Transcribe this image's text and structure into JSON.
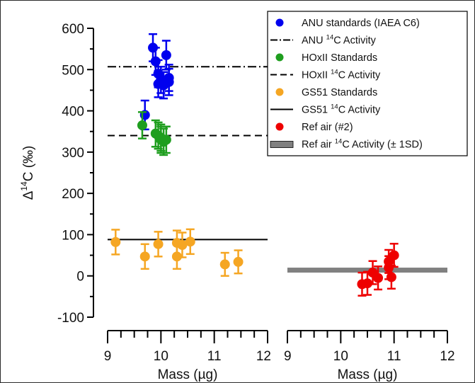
{
  "chart_data": {
    "type": "scatter",
    "panels": [
      {
        "name": "standards",
        "xlabel": "Mass (µg)",
        "xlim": [
          9,
          12
        ],
        "x_ticks": [
          "9",
          "10",
          "11",
          "12"
        ]
      },
      {
        "name": "ref-air",
        "xlabel": "Mass (µg)",
        "xlim": [
          9,
          12
        ],
        "x_ticks": [
          "9",
          "10",
          "11",
          "12"
        ]
      }
    ],
    "ylabel": "Δ14C (‰)",
    "ylabel_parts": {
      "delta": "Δ",
      "sup": "14",
      "rest": "C (‰)"
    },
    "ylim": [
      -100,
      600
    ],
    "y_ticks": [
      -100,
      0,
      100,
      200,
      300,
      400,
      500,
      600
    ],
    "legend_position": "top-right",
    "colors": {
      "anu": "#0000ee",
      "hox": "#1f9e1f",
      "gs51": "#f5a623",
      "refair": "#ee0000",
      "refair_band": "#808080",
      "line": "#000000"
    },
    "series": [
      {
        "name": "ANU standards (IAEA C6)",
        "panel": 0,
        "color_key": "anu",
        "points": [
          {
            "x": 9.7,
            "y": 390,
            "err": 35
          },
          {
            "x": 9.85,
            "y": 553,
            "err": 33
          },
          {
            "x": 9.9,
            "y": 520,
            "err": 33
          },
          {
            "x": 9.95,
            "y": 465,
            "err": 32
          },
          {
            "x": 9.95,
            "y": 490,
            "err": 33
          },
          {
            "x": 10.0,
            "y": 475,
            "err": 32
          },
          {
            "x": 10.05,
            "y": 462,
            "err": 32
          },
          {
            "x": 10.1,
            "y": 535,
            "err": 35
          },
          {
            "x": 10.15,
            "y": 480,
            "err": 32
          },
          {
            "x": 10.15,
            "y": 470,
            "err": 32
          }
        ]
      },
      {
        "name": "HOxII Standards",
        "panel": 0,
        "color_key": "hox",
        "points": [
          {
            "x": 9.65,
            "y": 365,
            "err": 32
          },
          {
            "x": 9.9,
            "y": 345,
            "err": 32
          },
          {
            "x": 9.95,
            "y": 340,
            "err": 32
          },
          {
            "x": 10.0,
            "y": 335,
            "err": 32
          },
          {
            "x": 10.0,
            "y": 330,
            "err": 32
          },
          {
            "x": 10.05,
            "y": 325,
            "err": 32
          },
          {
            "x": 10.1,
            "y": 330,
            "err": 32
          }
        ]
      },
      {
        "name": "GS51 Standards",
        "panel": 0,
        "color_key": "gs51",
        "points": [
          {
            "x": 9.15,
            "y": 82,
            "err": 30
          },
          {
            "x": 9.7,
            "y": 47,
            "err": 30
          },
          {
            "x": 9.95,
            "y": 77,
            "err": 30
          },
          {
            "x": 10.3,
            "y": 80,
            "err": 30
          },
          {
            "x": 10.3,
            "y": 47,
            "err": 30
          },
          {
            "x": 10.4,
            "y": 75,
            "err": 30
          },
          {
            "x": 10.55,
            "y": 83,
            "err": 30
          },
          {
            "x": 11.2,
            "y": 28,
            "err": 28
          },
          {
            "x": 11.45,
            "y": 34,
            "err": 28
          }
        ]
      },
      {
        "name": "Ref air (#2)",
        "panel": 1,
        "color_key": "refair",
        "points": [
          {
            "x": 10.4,
            "y": -20,
            "err": 28
          },
          {
            "x": 10.5,
            "y": -18,
            "err": 28
          },
          {
            "x": 10.6,
            "y": 8,
            "err": 28
          },
          {
            "x": 10.7,
            "y": -5,
            "err": 28
          },
          {
            "x": 10.9,
            "y": 35,
            "err": 28
          },
          {
            "x": 10.9,
            "y": 20,
            "err": 28
          },
          {
            "x": 10.95,
            "y": -3,
            "err": 28
          },
          {
            "x": 11.0,
            "y": 50,
            "err": 28
          }
        ]
      }
    ],
    "reference_lines": [
      {
        "name": "ANU 14C Activity",
        "legend_parts": [
          "ANU ",
          "14",
          "C Activity"
        ],
        "panel": 0,
        "y": 507,
        "style": "dashdot"
      },
      {
        "name": "HOxII 14C Activity",
        "legend_parts": [
          "HOxII ",
          "14",
          "C Activity"
        ],
        "panel": 0,
        "y": 340,
        "style": "dashed"
      },
      {
        "name": "GS51 14C Activity",
        "legend_parts": [
          "GS51 ",
          "14",
          "C Activity"
        ],
        "panel": 0,
        "y": 88,
        "style": "solid"
      },
      {
        "name": "Ref air 14C Activity (± 1SD)",
        "legend_parts": [
          "Ref air ",
          "14",
          "C Activity (± 1SD)"
        ],
        "panel": 1,
        "y": 14,
        "sd": 6,
        "style": "band"
      }
    ],
    "legend_order": [
      {
        "kind": "marker",
        "series": 0
      },
      {
        "kind": "line",
        "ref": 0
      },
      {
        "kind": "marker",
        "series": 1
      },
      {
        "kind": "line",
        "ref": 1
      },
      {
        "kind": "marker",
        "series": 2
      },
      {
        "kind": "line",
        "ref": 2
      },
      {
        "kind": "marker",
        "series": 3
      },
      {
        "kind": "band",
        "ref": 3
      }
    ]
  }
}
